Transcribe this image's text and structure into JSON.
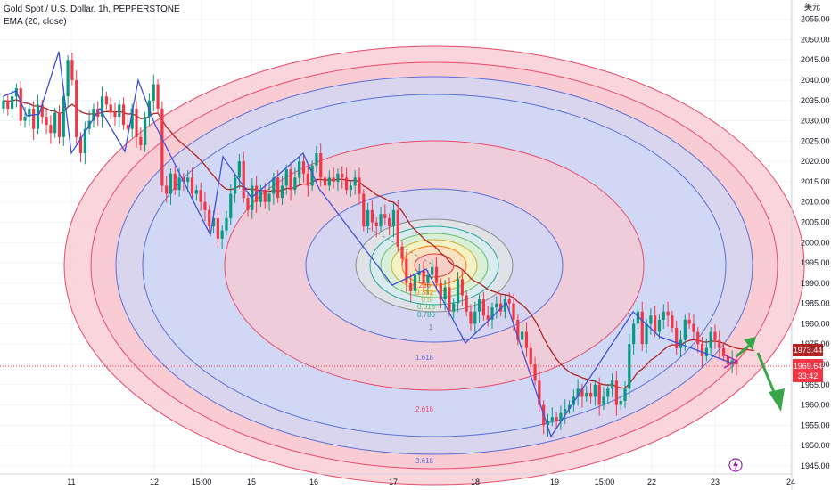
{
  "header": {
    "title": "Gold Spot / U.S. Dollar, 1h, PEPPERSTONE",
    "indicator": "EMA (20, close)",
    "currency": "美元"
  },
  "current_price": {
    "ema_value": "1973.44",
    "last_price": "1969.64",
    "countdown": "33:42"
  },
  "colors": {
    "bull": "#089981",
    "bear": "#f23645",
    "ema": "#b22222",
    "zigzag": "#3f51d8",
    "pink_fill": "#f8c8d0",
    "blue_fill": "#cdd8f8",
    "ring_pink": "#e84a6a",
    "ring_blue": "#5b6fd6",
    "arrow": "#3aa64a",
    "ema_tag": "#b22222",
    "price_tag": "#f23645"
  },
  "chart_data": {
    "type": "candlestick",
    "title": "Gold Spot / U.S. Dollar, 1h, PEPPERSTONE",
    "ylim": [
      1943,
      2058
    ],
    "y_ticks": [
      "1945.00",
      "1950.00",
      "1955.00",
      "1960.00",
      "1965.00",
      "1970.00",
      "1975.00",
      "1980.00",
      "1985.00",
      "1990.00",
      "1995.00",
      "2000.00",
      "2005.00",
      "2010.00",
      "2015.00",
      "2020.00",
      "2025.00",
      "2030.00",
      "2035.00",
      "2040.00",
      "2045.00",
      "2050.00",
      "2055.00"
    ],
    "x_ticks": [
      "11",
      "12",
      "15:00",
      "15",
      "16",
      "17",
      "18",
      "19",
      "15:00",
      "22",
      "23",
      "24"
    ],
    "closes": [
      2035,
      2033,
      2036,
      2038,
      2030,
      2031,
      2033,
      2028,
      2034,
      2031,
      2029,
      2027,
      2032,
      2026,
      2036,
      2045,
      2040,
      2026,
      2022,
      2028,
      2030,
      2033,
      2031,
      2036,
      2034,
      2032,
      2031,
      2034,
      2029,
      2028,
      2033,
      2026,
      2024,
      2031,
      2035,
      2039,
      2033,
      2014,
      2012,
      2017,
      2013,
      2016,
      2015,
      2016,
      2012,
      2013,
      2010,
      2008,
      2004,
      2006,
      2001,
      2003,
      2006,
      2012,
      2016,
      2020,
      2011,
      2008,
      2014,
      2010,
      2013,
      2010,
      2012,
      2016,
      2011,
      2014,
      2018,
      2013,
      2016,
      2020,
      2017,
      2014,
      2019,
      2022,
      2016,
      2014,
      2016,
      2015,
      2017,
      2016,
      2013,
      2014,
      2016,
      2012,
      2004,
      2008,
      2005,
      2004,
      2007,
      2006,
      2004,
      2008,
      1999,
      1996,
      1990,
      1988,
      1992,
      1993,
      1990,
      1992,
      1994,
      1990,
      1986,
      1989,
      1983,
      1985,
      1991,
      1987,
      1983,
      1980,
      1983,
      1986,
      1982,
      1981,
      1984,
      1985,
      1983,
      1986,
      1985,
      1981,
      1976,
      1978,
      1974,
      1970,
      1966,
      1960,
      1955,
      1956,
      1957,
      1956,
      1958,
      1959,
      1960,
      1962,
      1964,
      1962,
      1963,
      1962,
      1965,
      1960,
      1962,
      1964,
      1966,
      1960,
      1961,
      1964,
      1975,
      1980,
      1983,
      1975,
      1980,
      1982,
      1978,
      1981,
      1983,
      1982,
      1979,
      1974,
      1976,
      1981,
      1980,
      1978,
      1975,
      1972,
      1974,
      1978,
      1976,
      1974,
      1972,
      1970,
      1971,
      1970
    ],
    "ema_series_name": "EMA (20, close)",
    "fib_levels": [
      "0.236",
      "0.382",
      "0.5",
      "0.618",
      "0.786",
      "1",
      "1.618",
      "2.618",
      "3.618"
    ]
  }
}
